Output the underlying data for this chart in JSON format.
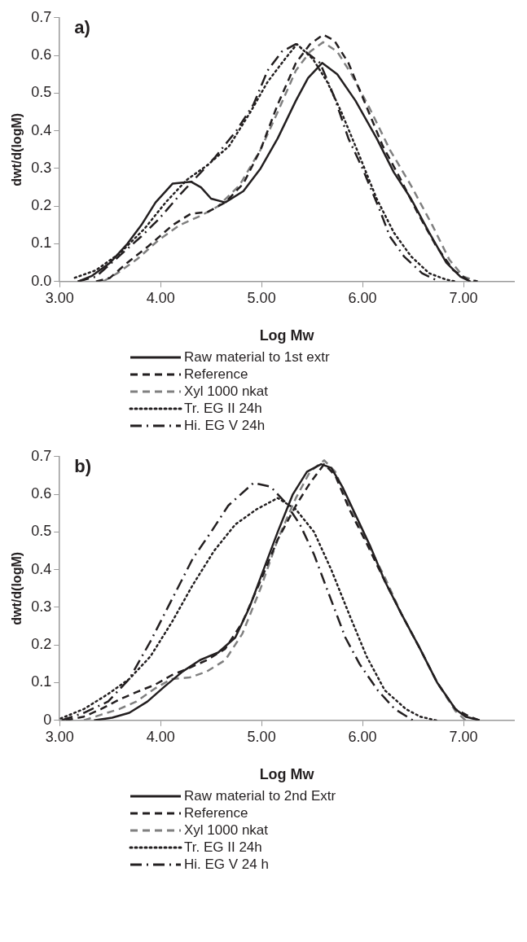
{
  "chart_data": [
    {
      "type": "line",
      "annotations": [
        "a)"
      ],
      "xlabel": "Log Mw",
      "ylabel": "dwt/d(logM)",
      "xlim": [
        3,
        7.5
      ],
      "xticks": [
        {
          "value": 3,
          "label": "3.00"
        },
        {
          "value": 4,
          "label": "4.00"
        },
        {
          "value": 5,
          "label": "5.00"
        },
        {
          "value": 6,
          "label": "6.00"
        },
        {
          "value": 7,
          "label": "7.00"
        }
      ],
      "ylim": [
        0,
        0.7
      ],
      "yticks": [
        {
          "value": 0,
          "label": "0.0"
        },
        0.1,
        0.2,
        0.3,
        0.4,
        0.5,
        0.6,
        0.7
      ],
      "grid": false,
      "legend": "bottom",
      "marker": "none",
      "series": [
        {
          "name": "Raw material to 1st extr",
          "color": "#231f20",
          "line_style": "solid",
          "x": [
            3.18,
            3.32,
            3.5,
            3.67,
            3.81,
            3.95,
            4.12,
            4.3,
            4.4,
            4.5,
            4.64,
            4.82,
            4.99,
            5.16,
            5.34,
            5.46,
            5.6,
            5.75,
            5.93,
            6.14,
            6.31,
            6.48,
            6.66,
            6.83,
            6.97,
            7.07
          ],
          "values": [
            0,
            0.015,
            0.05,
            0.1,
            0.15,
            0.21,
            0.26,
            0.265,
            0.25,
            0.22,
            0.21,
            0.24,
            0.3,
            0.38,
            0.48,
            0.54,
            0.58,
            0.55,
            0.48,
            0.38,
            0.29,
            0.22,
            0.13,
            0.05,
            0.013,
            0
          ]
        },
        {
          "name": "Reference",
          "color": "#231f20",
          "line_style": "dashed",
          "x": [
            3.36,
            3.5,
            3.67,
            3.88,
            4.12,
            4.3,
            4.47,
            4.64,
            4.82,
            4.99,
            5.16,
            5.34,
            5.48,
            5.61,
            5.72,
            5.86,
            6.03,
            6.2,
            6.38,
            6.55,
            6.73,
            6.9,
            7.04,
            7.14
          ],
          "values": [
            0,
            0.01,
            0.05,
            0.094,
            0.15,
            0.18,
            0.185,
            0.21,
            0.26,
            0.35,
            0.47,
            0.58,
            0.63,
            0.655,
            0.64,
            0.58,
            0.47,
            0.36,
            0.27,
            0.18,
            0.094,
            0.03,
            0.005,
            0
          ]
        },
        {
          "name": "Xyl 1000 nkat",
          "color": "#808080",
          "line_style": "dashed",
          "x": [
            3.43,
            3.57,
            3.77,
            3.98,
            4.19,
            4.4,
            4.57,
            4.78,
            4.99,
            5.16,
            5.34,
            5.48,
            5.61,
            5.75,
            5.89,
            6.07,
            6.27,
            6.48,
            6.69,
            6.86,
            7.0,
            7.14
          ],
          "values": [
            0,
            0.022,
            0.06,
            0.11,
            0.15,
            0.175,
            0.2,
            0.255,
            0.35,
            0.45,
            0.56,
            0.61,
            0.635,
            0.61,
            0.55,
            0.46,
            0.35,
            0.255,
            0.15,
            0.058,
            0.013,
            0
          ]
        },
        {
          "name": "Tr. EG II 24h",
          "color": "#231f20",
          "line_style": "dotted",
          "x": [
            3.15,
            3.36,
            3.6,
            3.84,
            4.05,
            4.26,
            4.47,
            4.68,
            4.89,
            5.06,
            5.23,
            5.35,
            5.51,
            5.65,
            5.79,
            5.96,
            6.14,
            6.31,
            6.48,
            6.66,
            6.83,
            6.93
          ],
          "values": [
            0.01,
            0.03,
            0.076,
            0.14,
            0.21,
            0.27,
            0.31,
            0.36,
            0.45,
            0.53,
            0.59,
            0.63,
            0.59,
            0.53,
            0.45,
            0.34,
            0.22,
            0.13,
            0.067,
            0.022,
            0.005,
            0
          ]
        },
        {
          "name": "Hi. EG V 24h",
          "color": "#231f20",
          "line_style": "dashdot",
          "x": [
            3.18,
            3.36,
            3.6,
            3.81,
            3.98,
            4.19,
            4.33,
            4.54,
            4.75,
            4.92,
            5.06,
            5.2,
            5.34,
            5.58,
            5.72,
            5.86,
            6.0,
            6.17,
            6.27,
            6.41,
            6.59,
            6.76
          ],
          "values": [
            0,
            0.013,
            0.07,
            0.12,
            0.165,
            0.23,
            0.27,
            0.33,
            0.4,
            0.47,
            0.56,
            0.61,
            0.63,
            0.58,
            0.49,
            0.38,
            0.3,
            0.19,
            0.12,
            0.067,
            0.022,
            0
          ]
        }
      ]
    },
    {
      "type": "line",
      "annotations": [
        "b)"
      ],
      "xlabel": "Log Mw",
      "ylabel": "dwt/d(logM)",
      "xlim": [
        3,
        7.5
      ],
      "xticks": [
        {
          "value": 3,
          "label": "3.00"
        },
        {
          "value": 4,
          "label": "4.00"
        },
        {
          "value": 5,
          "label": "5.00"
        },
        {
          "value": 6,
          "label": "6.00"
        },
        {
          "value": 7,
          "label": "7.00"
        }
      ],
      "ylim": [
        0,
        0.7
      ],
      "yticks": [
        0,
        0.1,
        0.2,
        0.3,
        0.4,
        0.5,
        0.6,
        0.7
      ],
      "grid": false,
      "legend": "bottom",
      "marker": "none",
      "series": [
        {
          "name": "Raw material to 2nd Extr",
          "color": "#231f20",
          "line_style": "solid",
          "x": [
            3.34,
            3.52,
            3.69,
            3.87,
            4.04,
            4.22,
            4.39,
            4.57,
            4.74,
            4.88,
            5.02,
            5.16,
            5.31,
            5.45,
            5.59,
            5.69,
            5.8,
            5.94,
            6.08,
            6.22,
            6.39,
            6.57,
            6.74,
            6.92,
            7.02,
            7.16
          ],
          "values": [
            0,
            0.007,
            0.02,
            0.05,
            0.09,
            0.13,
            0.16,
            0.18,
            0.22,
            0.3,
            0.4,
            0.5,
            0.6,
            0.66,
            0.68,
            0.67,
            0.62,
            0.54,
            0.46,
            0.37,
            0.28,
            0.19,
            0.1,
            0.03,
            0.01,
            0
          ]
        },
        {
          "name": "Reference",
          "color": "#231f20",
          "line_style": "dashed",
          "x": [
            3.06,
            3.24,
            3.41,
            3.59,
            3.76,
            3.94,
            4.11,
            4.29,
            4.46,
            4.64,
            4.81,
            4.99,
            5.16,
            5.34,
            5.48,
            5.62,
            5.73,
            5.87,
            6.04,
            6.22,
            6.39,
            6.57,
            6.74,
            6.92,
            7.06,
            7.16
          ],
          "values": [
            0,
            0.01,
            0.03,
            0.055,
            0.075,
            0.094,
            0.12,
            0.14,
            0.16,
            0.19,
            0.26,
            0.37,
            0.48,
            0.57,
            0.63,
            0.68,
            0.65,
            0.56,
            0.47,
            0.37,
            0.28,
            0.19,
            0.1,
            0.03,
            0.01,
            0
          ]
        },
        {
          "name": "Xyl 1000 nkat",
          "color": "#808080",
          "line_style": "dashed",
          "x": [
            3.24,
            3.41,
            3.59,
            3.76,
            3.94,
            4.11,
            4.29,
            4.46,
            4.64,
            4.81,
            4.99,
            5.16,
            5.34,
            5.48,
            5.62,
            5.73,
            5.87,
            6.04,
            6.22,
            6.39,
            6.57,
            6.74,
            6.92,
            7.02
          ],
          "values": [
            0,
            0.015,
            0.03,
            0.05,
            0.084,
            0.11,
            0.114,
            0.13,
            0.16,
            0.23,
            0.35,
            0.48,
            0.59,
            0.66,
            0.69,
            0.66,
            0.57,
            0.475,
            0.38,
            0.28,
            0.19,
            0.1,
            0.025,
            0
          ]
        },
        {
          "name": "Tr. EG II 24h",
          "color": "#231f20",
          "line_style": "dotted",
          "x": [
            3.01,
            3.24,
            3.48,
            3.69,
            3.9,
            4.11,
            4.32,
            4.53,
            4.74,
            4.95,
            5.16,
            5.34,
            5.52,
            5.69,
            5.87,
            6.04,
            6.22,
            6.43,
            6.57,
            6.73
          ],
          "values": [
            0.005,
            0.03,
            0.07,
            0.11,
            0.17,
            0.26,
            0.36,
            0.45,
            0.52,
            0.56,
            0.59,
            0.56,
            0.5,
            0.4,
            0.28,
            0.17,
            0.08,
            0.03,
            0.01,
            0
          ]
        },
        {
          "name": "Hi. EG V 24 h",
          "color": "#231f20",
          "line_style": "dashdot",
          "x": [
            3.02,
            3.24,
            3.48,
            3.69,
            3.9,
            4.11,
            4.32,
            4.5,
            4.67,
            4.92,
            5.09,
            5.23,
            5.38,
            5.52,
            5.66,
            5.83,
            5.97,
            6.15,
            6.32,
            6.5
          ],
          "values": [
            0,
            0.02,
            0.05,
            0.11,
            0.21,
            0.32,
            0.43,
            0.5,
            0.57,
            0.63,
            0.62,
            0.58,
            0.52,
            0.44,
            0.34,
            0.22,
            0.15,
            0.08,
            0.03,
            0
          ]
        }
      ]
    }
  ]
}
